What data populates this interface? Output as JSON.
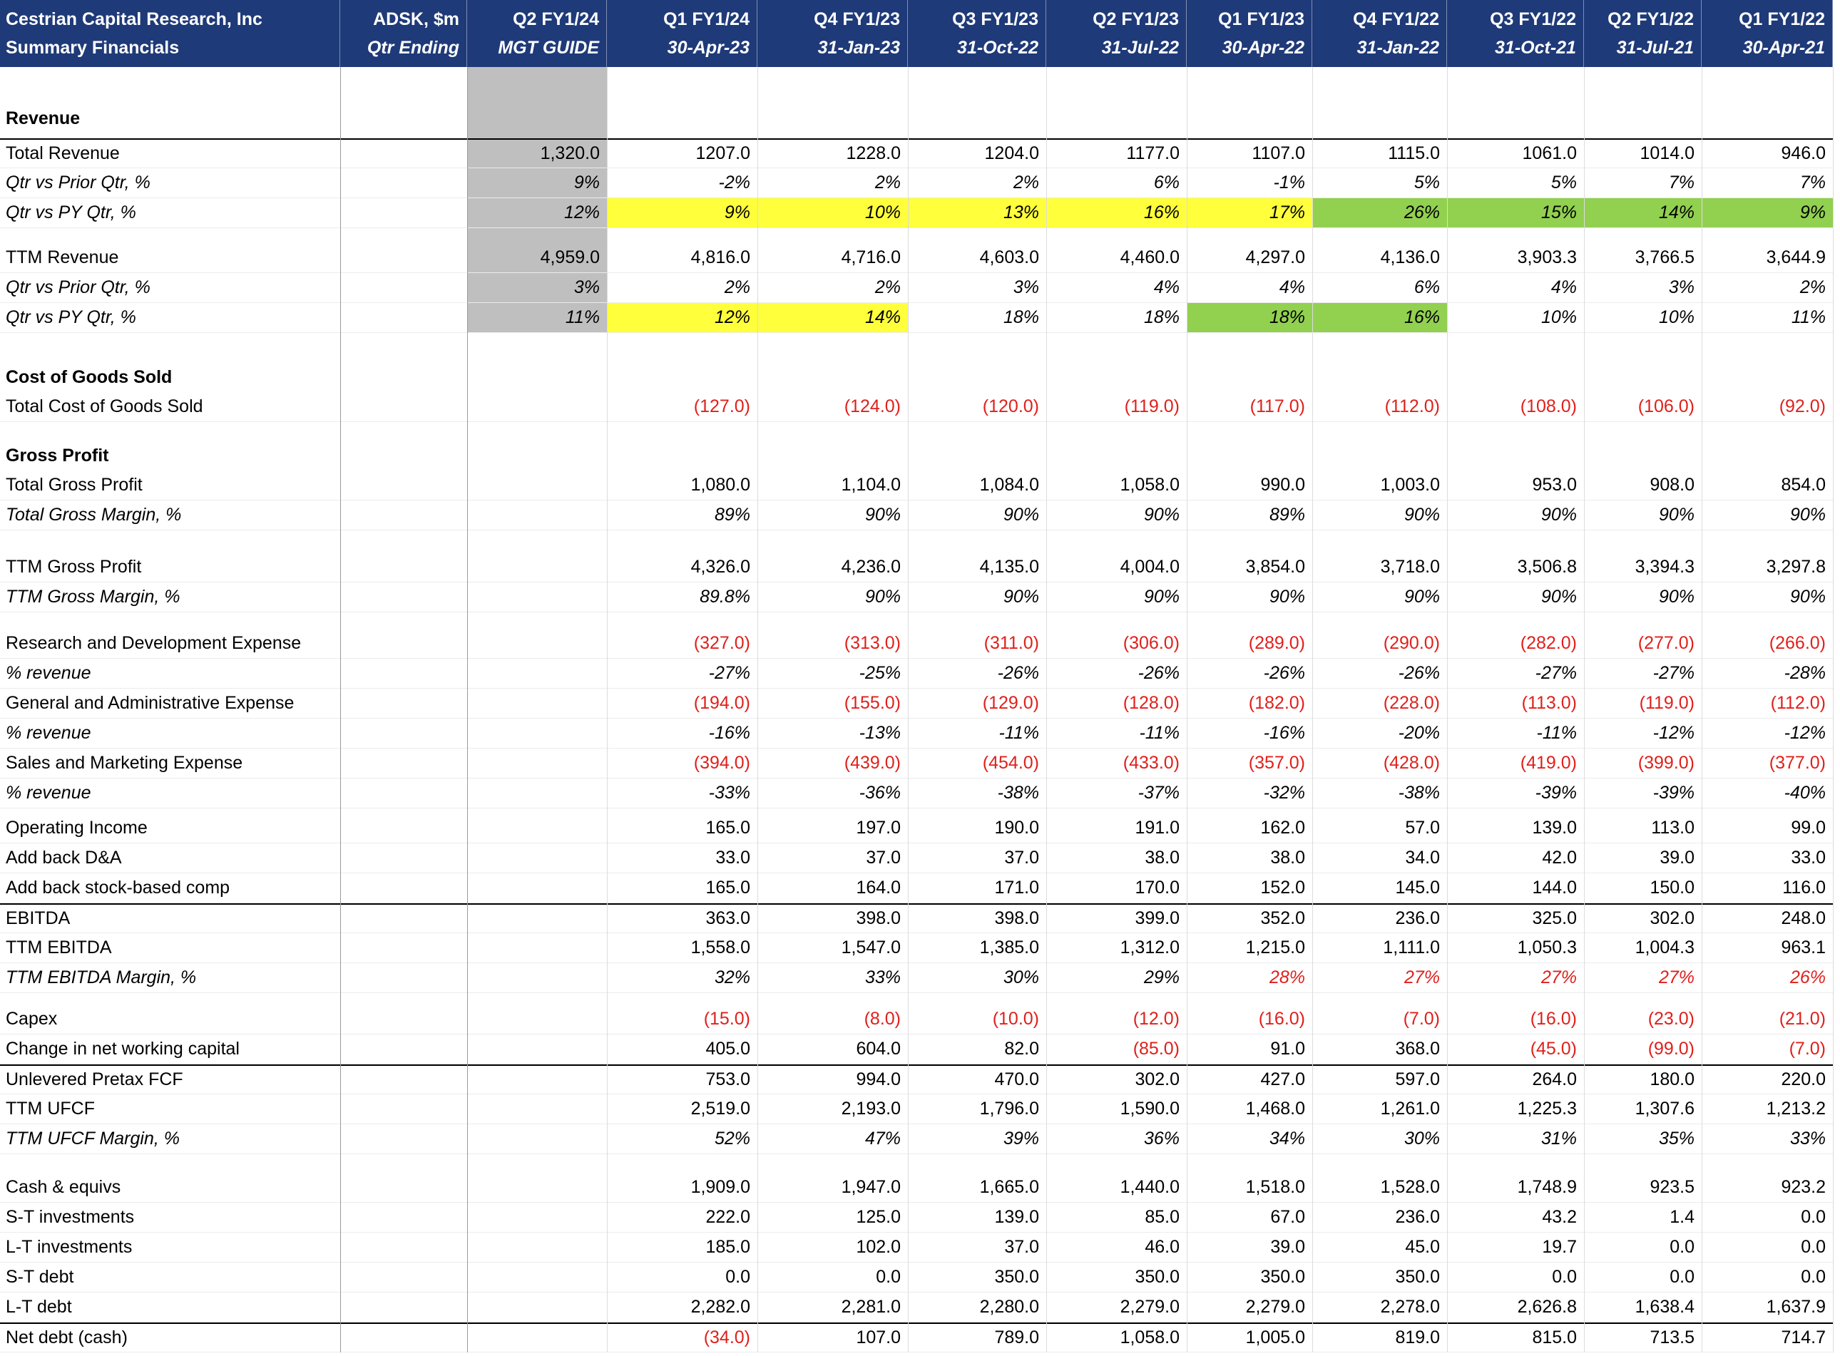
{
  "header": {
    "title": [
      "Cestrian Capital Research, Inc",
      "Summary Financials"
    ],
    "ticker": [
      "ADSK, $m",
      "Qtr Ending"
    ],
    "guide": [
      "Q2 FY1/24",
      "MGT GUIDE"
    ],
    "columns": [
      {
        "period": "Q1 FY1/24",
        "date": "30-Apr-23"
      },
      {
        "period": "Q4 FY1/23",
        "date": "31-Jan-23"
      },
      {
        "period": "Q3 FY1/23",
        "date": "31-Oct-22"
      },
      {
        "period": "Q2 FY1/23",
        "date": "31-Jul-22"
      },
      {
        "period": "Q1 FY1/23",
        "date": "30-Apr-22"
      },
      {
        "period": "Q4 FY1/22",
        "date": "31-Jan-22"
      },
      {
        "period": "Q3 FY1/22",
        "date": "31-Oct-21"
      },
      {
        "period": "Q2 FY1/22",
        "date": "31-Jul-21"
      },
      {
        "period": "Q1 FY1/22",
        "date": "30-Apr-21"
      }
    ]
  },
  "sections": [
    {
      "heading": "Revenue",
      "rows": [
        {
          "label": "Total Revenue",
          "guide": "1,320.0",
          "rule_above": true,
          "values": [
            "1207.0",
            "1228.0",
            "1204.0",
            "1177.0",
            "1107.0",
            "1115.0",
            "1061.0",
            "1014.0",
            "946.0"
          ]
        },
        {
          "label": "Qtr vs Prior Qtr, %",
          "guide": "9%",
          "italic": true,
          "values": [
            "-2%",
            "2%",
            "2%",
            "6%",
            "-1%",
            "5%",
            "5%",
            "7%",
            "7%"
          ]
        },
        {
          "label": "Qtr vs PY Qtr, %",
          "guide": "12%",
          "italic": true,
          "values": [
            "9%",
            "10%",
            "13%",
            "16%",
            "17%",
            "26%",
            "15%",
            "14%",
            "9%"
          ],
          "fills": [
            "#ffff3b",
            "#ffff3b",
            "#ffff3b",
            "#ffff3b",
            "#ffff3b",
            "#92d050",
            "#92d050",
            "#92d050",
            "#92d050"
          ]
        }
      ]
    },
    {
      "rows": [
        {
          "label": "TTM Revenue",
          "guide": "4,959.0",
          "values": [
            "4,816.0",
            "4,716.0",
            "4,603.0",
            "4,460.0",
            "4,297.0",
            "4,136.0",
            "3,903.3",
            "3,766.5",
            "3,644.9"
          ]
        },
        {
          "label": "Qtr vs Prior Qtr, %",
          "guide": "3%",
          "italic": true,
          "values": [
            "2%",
            "2%",
            "3%",
            "4%",
            "4%",
            "6%",
            "4%",
            "3%",
            "2%"
          ]
        },
        {
          "label": "Qtr vs PY Qtr, %",
          "guide": "11%",
          "italic": true,
          "values": [
            "12%",
            "14%",
            "18%",
            "18%",
            "18%",
            "16%",
            "10%",
            "10%",
            "11%"
          ],
          "fills": [
            "#ffff3b",
            "#ffff3b",
            null,
            null,
            "#92d050",
            "#92d050",
            null,
            null,
            null
          ]
        }
      ]
    },
    {
      "heading": "Cost of Goods Sold",
      "rows": [
        {
          "label": "Total Cost of Goods Sold",
          "values": [
            "(127.0)",
            "(124.0)",
            "(120.0)",
            "(119.0)",
            "(117.0)",
            "(112.0)",
            "(108.0)",
            "(106.0)",
            "(92.0)"
          ]
        }
      ]
    },
    {
      "heading": "Gross Profit",
      "rows": [
        {
          "label": "Total Gross Profit",
          "values": [
            "1,080.0",
            "1,104.0",
            "1,084.0",
            "1,058.0",
            "990.0",
            "1,003.0",
            "953.0",
            "908.0",
            "854.0"
          ]
        },
        {
          "label": "Total Gross Margin, %",
          "italic": true,
          "values": [
            "89%",
            "90%",
            "90%",
            "90%",
            "89%",
            "90%",
            "90%",
            "90%",
            "90%"
          ]
        }
      ]
    },
    {
      "rows": [
        {
          "label": "TTM Gross Profit",
          "values": [
            "4,326.0",
            "4,236.0",
            "4,135.0",
            "4,004.0",
            "3,854.0",
            "3,718.0",
            "3,506.8",
            "3,394.3",
            "3,297.8"
          ]
        },
        {
          "label": "TTM Gross Margin, %",
          "italic": true,
          "values": [
            "89.8%",
            "90%",
            "90%",
            "90%",
            "90%",
            "90%",
            "90%",
            "90%",
            "90%"
          ]
        }
      ]
    },
    {
      "rows": [
        {
          "label": "Research and Development Expense",
          "values": [
            "(327.0)",
            "(313.0)",
            "(311.0)",
            "(306.0)",
            "(289.0)",
            "(290.0)",
            "(282.0)",
            "(277.0)",
            "(266.0)"
          ]
        },
        {
          "label": "% revenue",
          "italic": true,
          "values": [
            "-27%",
            "-25%",
            "-26%",
            "-26%",
            "-26%",
            "-26%",
            "-27%",
            "-27%",
            "-28%"
          ]
        },
        {
          "label": "General and Administrative Expense",
          "values": [
            "(194.0)",
            "(155.0)",
            "(129.0)",
            "(128.0)",
            "(182.0)",
            "(228.0)",
            "(113.0)",
            "(119.0)",
            "(112.0)"
          ]
        },
        {
          "label": "% revenue",
          "italic": true,
          "values": [
            "-16%",
            "-13%",
            "-11%",
            "-11%",
            "-16%",
            "-20%",
            "-11%",
            "-12%",
            "-12%"
          ]
        },
        {
          "label": "Sales and Marketing Expense",
          "values": [
            "(394.0)",
            "(439.0)",
            "(454.0)",
            "(433.0)",
            "(357.0)",
            "(428.0)",
            "(419.0)",
            "(399.0)",
            "(377.0)"
          ]
        },
        {
          "label": "% revenue",
          "italic": true,
          "values": [
            "-33%",
            "-36%",
            "-38%",
            "-37%",
            "-32%",
            "-38%",
            "-39%",
            "-39%",
            "-40%"
          ]
        }
      ]
    },
    {
      "rows": [
        {
          "label": "Operating Income",
          "values": [
            "165.0",
            "197.0",
            "190.0",
            "191.0",
            "162.0",
            "57.0",
            "139.0",
            "113.0",
            "99.0"
          ]
        },
        {
          "label": "Add back D&A",
          "values": [
            "33.0",
            "37.0",
            "37.0",
            "38.0",
            "38.0",
            "34.0",
            "42.0",
            "39.0",
            "33.0"
          ]
        },
        {
          "label": "Add back stock-based comp",
          "values": [
            "165.0",
            "164.0",
            "171.0",
            "170.0",
            "152.0",
            "145.0",
            "144.0",
            "150.0",
            "116.0"
          ]
        },
        {
          "label": "EBITDA",
          "rule_above": true,
          "values": [
            "363.0",
            "398.0",
            "398.0",
            "399.0",
            "352.0",
            "236.0",
            "325.0",
            "302.0",
            "248.0"
          ]
        },
        {
          "label": "TTM EBITDA",
          "values": [
            "1,558.0",
            "1,547.0",
            "1,385.0",
            "1,312.0",
            "1,215.0",
            "1,111.0",
            "1,050.3",
            "1,004.3",
            "963.1"
          ]
        },
        {
          "label": "TTM EBITDA Margin, %",
          "italic": true,
          "values": [
            "32%",
            "33%",
            "30%",
            "29%",
            "28%",
            "27%",
            "27%",
            "27%",
            "26%"
          ],
          "colors": [
            null,
            null,
            null,
            null,
            "#e0201b",
            "#e0201b",
            "#e0201b",
            "#e0201b",
            "#e0201b"
          ]
        }
      ]
    },
    {
      "rows": [
        {
          "label": "Capex",
          "values": [
            "(15.0)",
            "(8.0)",
            "(10.0)",
            "(12.0)",
            "(16.0)",
            "(7.0)",
            "(16.0)",
            "(23.0)",
            "(21.0)"
          ]
        },
        {
          "label": "Change in net working capital",
          "values": [
            "405.0",
            "604.0",
            "82.0",
            "(85.0)",
            "91.0",
            "368.0",
            "(45.0)",
            "(99.0)",
            "(7.0)"
          ]
        },
        {
          "label": "Unlevered Pretax FCF",
          "rule_above": true,
          "values": [
            "753.0",
            "994.0",
            "470.0",
            "302.0",
            "427.0",
            "597.0",
            "264.0",
            "180.0",
            "220.0"
          ]
        },
        {
          "label": "TTM UFCF",
          "values": [
            "2,519.0",
            "2,193.0",
            "1,796.0",
            "1,590.0",
            "1,468.0",
            "1,261.0",
            "1,225.3",
            "1,307.6",
            "1,213.2"
          ]
        },
        {
          "label": "TTM UFCF Margin, %",
          "italic": true,
          "values": [
            "52%",
            "47%",
            "39%",
            "36%",
            "34%",
            "30%",
            "31%",
            "35%",
            "33%"
          ]
        }
      ]
    },
    {
      "rows": [
        {
          "label": "Cash & equivs",
          "values": [
            "1,909.0",
            "1,947.0",
            "1,665.0",
            "1,440.0",
            "1,518.0",
            "1,528.0",
            "1,748.9",
            "923.5",
            "923.2"
          ]
        },
        {
          "label": "S-T investments",
          "values": [
            "222.0",
            "125.0",
            "139.0",
            "85.0",
            "67.0",
            "236.0",
            "43.2",
            "1.4",
            "0.0"
          ]
        },
        {
          "label": "L-T investments",
          "values": [
            "185.0",
            "102.0",
            "37.0",
            "46.0",
            "39.0",
            "45.0",
            "19.7",
            "0.0",
            "0.0"
          ]
        },
        {
          "label": "S-T debt",
          "values": [
            "0.0",
            "0.0",
            "350.0",
            "350.0",
            "350.0",
            "350.0",
            "0.0",
            "0.0",
            "0.0"
          ]
        },
        {
          "label": "L-T debt",
          "values": [
            "2,282.0",
            "2,281.0",
            "2,280.0",
            "2,279.0",
            "2,279.0",
            "2,278.0",
            "2,626.8",
            "1,638.4",
            "1,637.9"
          ]
        },
        {
          "label": "Net debt (cash)",
          "rule_above": true,
          "values": [
            "(34.0)",
            "107.0",
            "789.0",
            "1,058.0",
            "1,005.0",
            "819.0",
            "815.0",
            "713.5",
            "714.7"
          ]
        }
      ]
    }
  ]
}
